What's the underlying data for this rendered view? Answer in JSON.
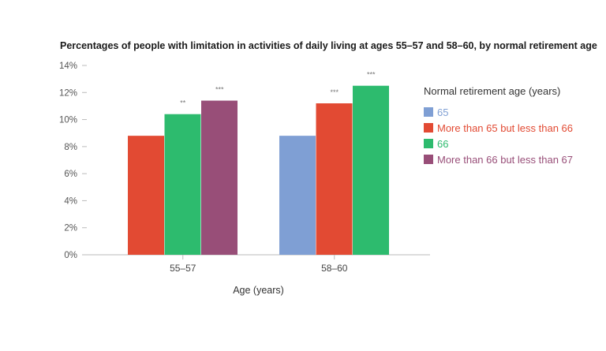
{
  "chart_data": {
    "type": "bar",
    "title": "Percentages of people with limitation in activities of daily living at ages 55–57 and 58–60, by normal retirement age",
    "xlabel": "Age (years)",
    "ylabel": "",
    "ylim": [
      0,
      14
    ],
    "yticks": [
      "0%",
      "2%",
      "4%",
      "6%",
      "8%",
      "10%",
      "12%",
      "14%"
    ],
    "categories": [
      "55–57",
      "58–60"
    ],
    "grid": false,
    "legend_position": "right",
    "legend_title": "Normal retirement age (years)",
    "series": [
      {
        "name": "65",
        "color": "#7f9fd4",
        "values": [
          null,
          8.8
        ],
        "annotations": [
          "",
          ""
        ]
      },
      {
        "name": "More than 65 but less than 66",
        "color": "#e24a33",
        "values": [
          8.8,
          11.2
        ],
        "annotations": [
          "",
          "***"
        ]
      },
      {
        "name": "66",
        "color": "#2dbb6e",
        "values": [
          10.4,
          12.5
        ],
        "annotations": [
          "**",
          "***"
        ]
      },
      {
        "name": "More than 66 but less than 67",
        "color": "#984e78",
        "values": [
          11.4,
          null
        ],
        "annotations": [
          "***",
          ""
        ]
      }
    ]
  }
}
